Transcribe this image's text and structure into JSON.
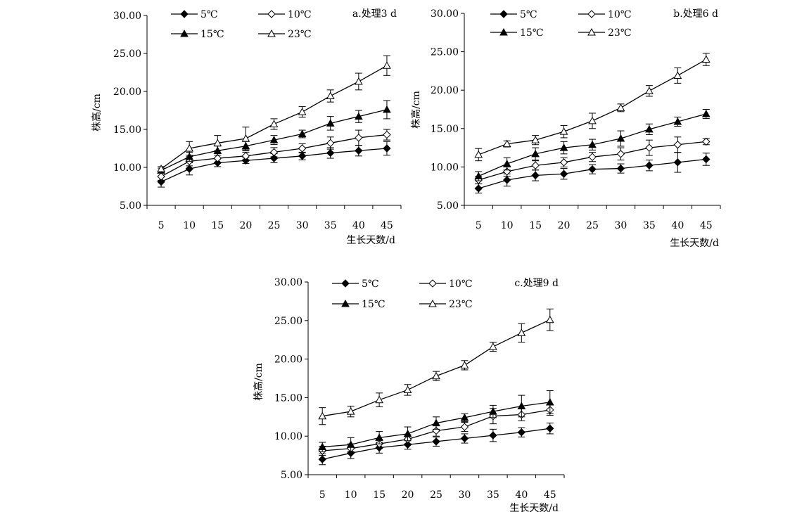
{
  "chart_data": [
    {
      "type": "line",
      "panel_title": "a.处理3 d",
      "xlabel": "生长天数/d",
      "ylabel": "株高/cm",
      "categories": [
        "5",
        "10",
        "15",
        "20",
        "25",
        "30",
        "35",
        "40",
        "45"
      ],
      "ylim": [
        5,
        30
      ],
      "yticks": [
        "5.00",
        "10.00",
        "15.00",
        "20.00",
        "25.00",
        "30.00"
      ],
      "grid": false,
      "legend_position": "top-left",
      "series": [
        {
          "name": "5℃",
          "marker": "filled-diamond",
          "values": [
            8.1,
            9.8,
            10.6,
            10.9,
            11.2,
            11.5,
            11.9,
            12.2,
            12.5
          ],
          "errors": [
            0.7,
            0.8,
            0.5,
            0.4,
            0.6,
            0.5,
            0.7,
            0.7,
            0.9
          ]
        },
        {
          "name": "10℃",
          "marker": "open-diamond",
          "values": [
            8.8,
            10.8,
            11.2,
            11.5,
            12.0,
            12.5,
            13.2,
            13.9,
            14.3
          ],
          "errors": [
            0.5,
            0.6,
            0.6,
            0.5,
            0.6,
            0.6,
            0.8,
            1.0,
            0.7
          ]
        },
        {
          "name": "15℃",
          "marker": "filled-triangle",
          "values": [
            9.6,
            11.4,
            12.2,
            12.8,
            13.6,
            14.4,
            15.8,
            16.7,
            17.6
          ],
          "errors": [
            0.3,
            0.6,
            0.6,
            0.6,
            0.6,
            0.5,
            0.9,
            0.8,
            1.2
          ]
        },
        {
          "name": "23℃",
          "marker": "open-triangle",
          "values": [
            9.8,
            12.5,
            13.2,
            13.8,
            15.7,
            17.3,
            19.4,
            21.3,
            23.4
          ],
          "errors": [
            0.3,
            0.9,
            1.0,
            1.5,
            0.7,
            0.7,
            0.8,
            1.1,
            1.3
          ]
        }
      ]
    },
    {
      "type": "line",
      "panel_title": "b.处理6 d",
      "xlabel": "生长天数/d",
      "ylabel": "株高/cm",
      "categories": [
        "5",
        "10",
        "15",
        "20",
        "25",
        "30",
        "35",
        "40",
        "45"
      ],
      "ylim": [
        5,
        30
      ],
      "yticks": [
        "5.00",
        "10.00",
        "15.00",
        "20.00",
        "25.00",
        "30.00"
      ],
      "grid": false,
      "legend_position": "top-left",
      "series": [
        {
          "name": "5℃",
          "marker": "filled-diamond",
          "values": [
            7.2,
            8.3,
            8.9,
            9.1,
            9.7,
            9.8,
            10.2,
            10.6,
            11.0
          ],
          "errors": [
            0.6,
            0.8,
            0.7,
            0.7,
            0.6,
            0.6,
            0.7,
            1.3,
            0.8
          ]
        },
        {
          "name": "10℃",
          "marker": "open-diamond",
          "values": [
            8.3,
            9.4,
            10.2,
            10.6,
            11.3,
            11.7,
            12.5,
            12.9,
            13.3
          ],
          "errors": [
            0.5,
            0.6,
            0.6,
            0.6,
            0.6,
            0.8,
            1.0,
            1.0,
            0.4
          ]
        },
        {
          "name": "15℃",
          "marker": "filled-triangle",
          "values": [
            8.8,
            10.4,
            11.7,
            12.5,
            12.9,
            13.7,
            14.9,
            15.9,
            16.9
          ],
          "errors": [
            0.6,
            0.8,
            0.8,
            0.8,
            0.7,
            1.0,
            0.7,
            0.6,
            0.6
          ]
        },
        {
          "name": "23℃",
          "marker": "open-triangle",
          "values": [
            11.6,
            13.0,
            13.5,
            14.6,
            16.0,
            17.7,
            19.9,
            21.9,
            24.0
          ],
          "errors": [
            0.8,
            0.4,
            0.6,
            0.8,
            1.0,
            0.5,
            0.7,
            1.0,
            0.8
          ]
        }
      ]
    },
    {
      "type": "line",
      "panel_title": "c.处理9 d",
      "xlabel": "生长天数/d",
      "ylabel": "株高/cm",
      "categories": [
        "5",
        "10",
        "15",
        "20",
        "25",
        "30",
        "35",
        "40",
        "45"
      ],
      "ylim": [
        5,
        30
      ],
      "yticks": [
        "5.00",
        "10.00",
        "15.00",
        "20.00",
        "25.00",
        "30.00"
      ],
      "grid": false,
      "legend_position": "top-left",
      "series": [
        {
          "name": "5℃",
          "marker": "filled-diamond",
          "values": [
            7.0,
            7.8,
            8.5,
            8.9,
            9.3,
            9.7,
            10.1,
            10.5,
            11.0
          ],
          "errors": [
            0.7,
            0.7,
            0.7,
            0.6,
            0.6,
            0.6,
            0.8,
            0.6,
            0.7
          ]
        },
        {
          "name": "10℃",
          "marker": "open-diamond",
          "values": [
            8.1,
            8.4,
            9.0,
            9.6,
            10.7,
            11.2,
            12.6,
            12.8,
            13.4
          ],
          "errors": [
            0.6,
            0.6,
            0.6,
            0.6,
            0.7,
            0.6,
            1.0,
            0.8,
            0.7
          ]
        },
        {
          "name": "15℃",
          "marker": "filled-triangle",
          "values": [
            8.6,
            8.9,
            9.8,
            10.3,
            11.7,
            12.4,
            13.2,
            13.9,
            14.4
          ],
          "errors": [
            0.6,
            0.9,
            0.8,
            0.9,
            0.8,
            0.5,
            0.8,
            1.4,
            1.5
          ]
        },
        {
          "name": "23℃",
          "marker": "open-triangle",
          "values": [
            12.6,
            13.2,
            14.7,
            16.0,
            17.8,
            19.2,
            21.6,
            23.4,
            25.1
          ],
          "errors": [
            1.1,
            0.7,
            0.9,
            0.7,
            0.6,
            0.6,
            0.6,
            1.2,
            1.4
          ]
        }
      ]
    }
  ]
}
